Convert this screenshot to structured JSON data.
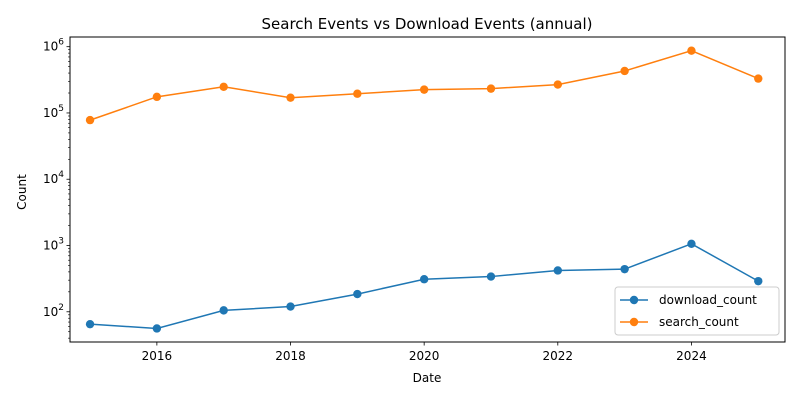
{
  "chart_data": {
    "type": "line",
    "title": "Search Events vs Download Events (annual)",
    "xlabel": "Date",
    "ylabel": "Count",
    "yscale": "log",
    "xlim": [
      2014.7,
      2025.4
    ],
    "ylim": [
      35,
      1400000
    ],
    "x_ticks": [
      2016,
      2018,
      2020,
      2022,
      2024
    ],
    "y_ticks": [
      {
        "value": 100,
        "base": "10",
        "exp": "2"
      },
      {
        "value": 1000,
        "base": "10",
        "exp": "3"
      },
      {
        "value": 10000,
        "base": "10",
        "exp": "4"
      },
      {
        "value": 100000,
        "base": "10",
        "exp": "5"
      },
      {
        "value": 1000000,
        "base": "10",
        "exp": "6"
      }
    ],
    "grid": false,
    "legend_position": "lower-right",
    "x": [
      2015,
      2016,
      2017,
      2018,
      2019,
      2020,
      2021,
      2022,
      2023,
      2024,
      2025
    ],
    "series": [
      {
        "name": "download_count",
        "color": "#1f77b4",
        "values": [
          65,
          56,
          105,
          120,
          185,
          310,
          340,
          420,
          440,
          1060,
          290
        ]
      },
      {
        "name": "search_count",
        "color": "#ff7f0e",
        "values": [
          78000,
          175000,
          248000,
          170000,
          195000,
          225000,
          233000,
          268000,
          430000,
          870000,
          330000
        ]
      }
    ]
  }
}
